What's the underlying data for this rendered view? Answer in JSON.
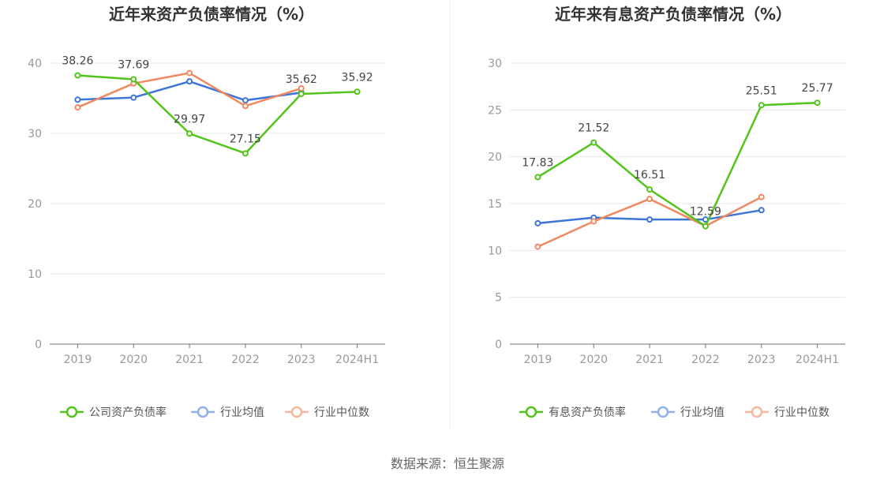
{
  "source": "数据来源：恒生聚源",
  "chart_data": [
    {
      "type": "line",
      "title": "近年来资产负债率情况（%）",
      "categories": [
        "2019",
        "2020",
        "2021",
        "2022",
        "2023",
        "2024H1"
      ],
      "ylim": [
        0,
        40
      ],
      "yticks": [
        0,
        10,
        20,
        30,
        40
      ],
      "grid": true,
      "legend_position": "bottom",
      "series": [
        {
          "name": "公司资产负债率",
          "color": "#52c41a",
          "values": [
            38.26,
            37.69,
            29.97,
            27.15,
            35.62,
            35.92
          ],
          "labels": [
            "38.26",
            "37.69",
            "29.97",
            "27.15",
            "35.62",
            "35.92"
          ]
        },
        {
          "name": "行业均值",
          "color": "#3c74d8",
          "values": [
            34.8,
            35.1,
            37.4,
            34.7,
            35.8,
            null
          ]
        },
        {
          "name": "行业中位数",
          "color": "#f0895f",
          "values": [
            33.7,
            37.1,
            38.6,
            33.9,
            36.4,
            null
          ]
        }
      ]
    },
    {
      "type": "line",
      "title": "近年来有息资产负债率情况（%）",
      "categories": [
        "2019",
        "2020",
        "2021",
        "2022",
        "2023",
        "2024H1"
      ],
      "ylim": [
        0,
        30
      ],
      "yticks": [
        0,
        5,
        10,
        15,
        20,
        25,
        30
      ],
      "grid": true,
      "legend_position": "bottom",
      "series": [
        {
          "name": "有息资产负债率",
          "color": "#52c41a",
          "values": [
            17.83,
            21.52,
            16.51,
            12.59,
            25.51,
            25.77
          ],
          "labels": [
            "17.83",
            "21.52",
            "16.51",
            "12.59",
            "25.51",
            "25.77"
          ]
        },
        {
          "name": "行业均值",
          "color": "#3c74d8",
          "values": [
            12.9,
            13.5,
            13.3,
            13.3,
            14.3,
            null
          ]
        },
        {
          "name": "行业中位数",
          "color": "#f0895f",
          "values": [
            10.4,
            13.1,
            15.5,
            12.6,
            15.7,
            null
          ]
        }
      ]
    }
  ]
}
